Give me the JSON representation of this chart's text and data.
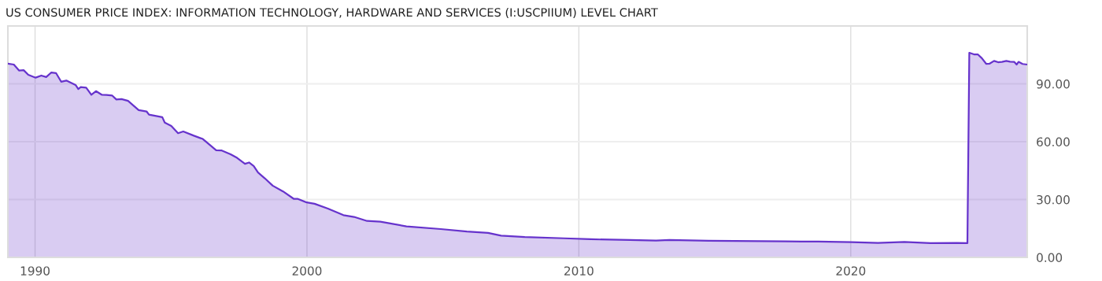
{
  "chart_data": {
    "type": "area",
    "title": "US CONSUMER PRICE INDEX: INFORMATION TECHNOLOGY, HARDWARE AND SERVICES (I:USCPIIUM) LEVEL CHART",
    "x": [
      1989.0,
      1989.22,
      1989.41,
      1989.58,
      1989.75,
      1990.02,
      1990.23,
      1990.41,
      1990.6,
      1990.77,
      1990.96,
      1991.15,
      1991.49,
      1991.59,
      1991.68,
      1991.88,
      1992.07,
      1992.24,
      1992.46,
      1992.63,
      1992.84,
      1992.99,
      1993.18,
      1993.42,
      1993.81,
      1994.1,
      1994.19,
      1994.68,
      1994.77,
      1995.01,
      1995.26,
      1995.45,
      1995.84,
      1996.17,
      1996.42,
      1996.66,
      1996.85,
      1997.19,
      1997.43,
      1997.72,
      1997.87,
      1998.04,
      1998.2,
      1998.45,
      1998.74,
      1999.12,
      1999.51,
      1999.65,
      1999.99,
      2000.28,
      2000.77,
      2001.34,
      2001.73,
      2002.21,
      2002.7,
      2003.66,
      2004.92,
      2005.88,
      2006.66,
      2007.14,
      2008.01,
      2009.46,
      2010.43,
      2011.88,
      2012.84,
      2013.33,
      2014.78,
      2017.6,
      2018.8,
      2020.03,
      2021.0,
      2021.97,
      2022.93,
      2023.9,
      2024.29,
      2024.36,
      2024.53,
      2024.67,
      2024.82,
      2024.98,
      2025.11,
      2025.27,
      2025.42,
      2025.56,
      2025.72,
      2025.86,
      2026.01,
      2026.1,
      2026.17,
      2026.32,
      2026.49
    ],
    "series": [
      {
        "color": "#6633cc",
        "values": [
          100.5,
          100.0,
          96.9,
          97.1,
          94.7,
          93.2,
          94.3,
          93.5,
          95.9,
          95.6,
          91.1,
          91.7,
          89.4,
          87.3,
          88.3,
          88.0,
          84.3,
          86.2,
          84.3,
          84.2,
          83.9,
          81.9,
          82.1,
          81.2,
          76.4,
          75.7,
          74.0,
          72.7,
          69.9,
          68.2,
          64.4,
          65.3,
          63.1,
          61.4,
          58.4,
          55.6,
          55.5,
          53.5,
          51.6,
          48.5,
          49.2,
          47.4,
          44.0,
          41.0,
          37.2,
          34.2,
          30.4,
          30.4,
          28.5,
          27.8,
          25.3,
          21.9,
          21.0,
          18.9,
          18.5,
          16.1,
          14.7,
          13.4,
          12.7,
          11.3,
          10.6,
          9.9,
          9.4,
          9.0,
          8.7,
          9.0,
          8.6,
          8.3,
          8.2,
          7.9,
          7.5,
          8.0,
          7.4,
          7.5,
          7.4,
          106.1,
          105.3,
          105.3,
          103.3,
          100.4,
          100.5,
          101.9,
          101.2,
          101.4,
          101.9,
          101.5,
          101.4,
          100.0,
          101.4,
          100.3,
          100.0
        ]
      }
    ],
    "xlim": [
      1989.0,
      2026.49
    ],
    "xticks": [
      1990,
      2000,
      2010,
      2020
    ],
    "ylim": [
      0,
      120
    ],
    "yticks": [
      {
        "value": 0,
        "label": "0.00"
      },
      {
        "value": 30,
        "label": "30.00"
      },
      {
        "value": 60,
        "label": "60.00"
      },
      {
        "value": 90,
        "label": "90.00"
      }
    ],
    "grid": true
  }
}
